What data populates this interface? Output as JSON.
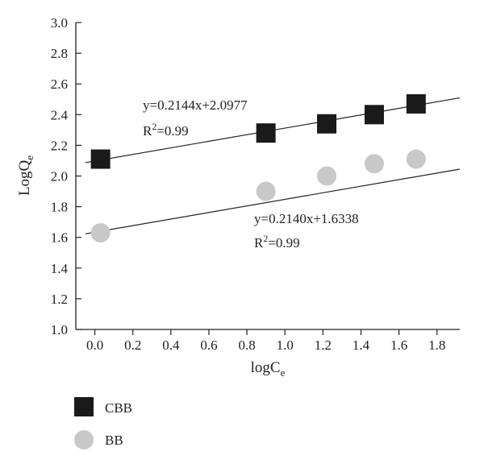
{
  "chart_data": {
    "type": "scatter",
    "xlabel": "logC",
    "xlabel_sub": "e",
    "ylabel": "LogQ",
    "ylabel_sub": "e",
    "xlim": [
      -0.1,
      1.92
    ],
    "ylim": [
      1.0,
      3.0
    ],
    "x_ticks": [
      "0.0",
      "0.2",
      "0.4",
      "0.6",
      "0.8",
      "1.0",
      "1.2",
      "1.4",
      "1.6",
      "1.8"
    ],
    "y_ticks": [
      "1.0",
      "1.2",
      "1.4",
      "1.6",
      "1.8",
      "2.0",
      "2.2",
      "2.4",
      "2.6",
      "2.8",
      "3.0"
    ],
    "legend_position": "bottom-left",
    "series": [
      {
        "name": "CBB",
        "marker": "square",
        "color": "#1a1a1a",
        "x": [
          0.03,
          0.9,
          1.22,
          1.47,
          1.69
        ],
        "y": [
          2.11,
          2.28,
          2.34,
          2.4,
          2.47
        ],
        "fit": {
          "slope": 0.2144,
          "intercept": 2.0977,
          "x_range": [
            -0.05,
            1.92
          ]
        },
        "equation": "y=0.2144x+2.0977",
        "r2_prefix": "R",
        "r2_sup": "2",
        "r2_value": "=0.99"
      },
      {
        "name": "BB",
        "marker": "circle",
        "color": "#c8c8c8",
        "x": [
          0.03,
          0.9,
          1.22,
          1.47,
          1.69
        ],
        "y": [
          1.63,
          1.9,
          2.0,
          2.08,
          2.11
        ],
        "fit": {
          "slope": 0.214,
          "intercept": 1.6338,
          "x_range": [
            -0.05,
            1.92
          ]
        },
        "equation": "y=0.2140x+1.6338",
        "r2_prefix": "R",
        "r2_sup": "2",
        "r2_value": "=0.99"
      }
    ]
  }
}
